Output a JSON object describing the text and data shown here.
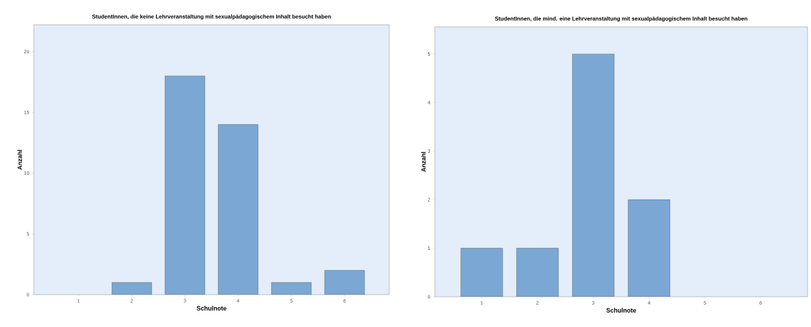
{
  "chart_data": [
    {
      "type": "bar",
      "title": "StudentInnen, die keine Lehrveranstaltung mit sexualpädagogischem Inhalt besucht haben",
      "xlabel": "Schulnote",
      "ylabel": "Anzahl",
      "categories": [
        "1",
        "2",
        "3",
        "4",
        "5",
        "6"
      ],
      "values": [
        0,
        1,
        18,
        14,
        1,
        2
      ],
      "color": "#7ba7d4",
      "ylim": [
        0,
        22.2
      ],
      "yticks": [
        0,
        5,
        10,
        15,
        20
      ]
    },
    {
      "type": "bar",
      "title": "StudentInnen, die mind. eine Lehrveranstaltung mit sexualpädagogischem Inhalt besucht haben",
      "xlabel": "Schulnote",
      "ylabel": "Anzahl",
      "categories": [
        "1",
        "2",
        "3",
        "4",
        "5",
        "6"
      ],
      "values": [
        1,
        1,
        5,
        2,
        0,
        0
      ],
      "color": "#7ba7d4",
      "ylim": [
        0,
        5.56
      ],
      "yticks": [
        0,
        1,
        2,
        3,
        4,
        5
      ]
    }
  ]
}
